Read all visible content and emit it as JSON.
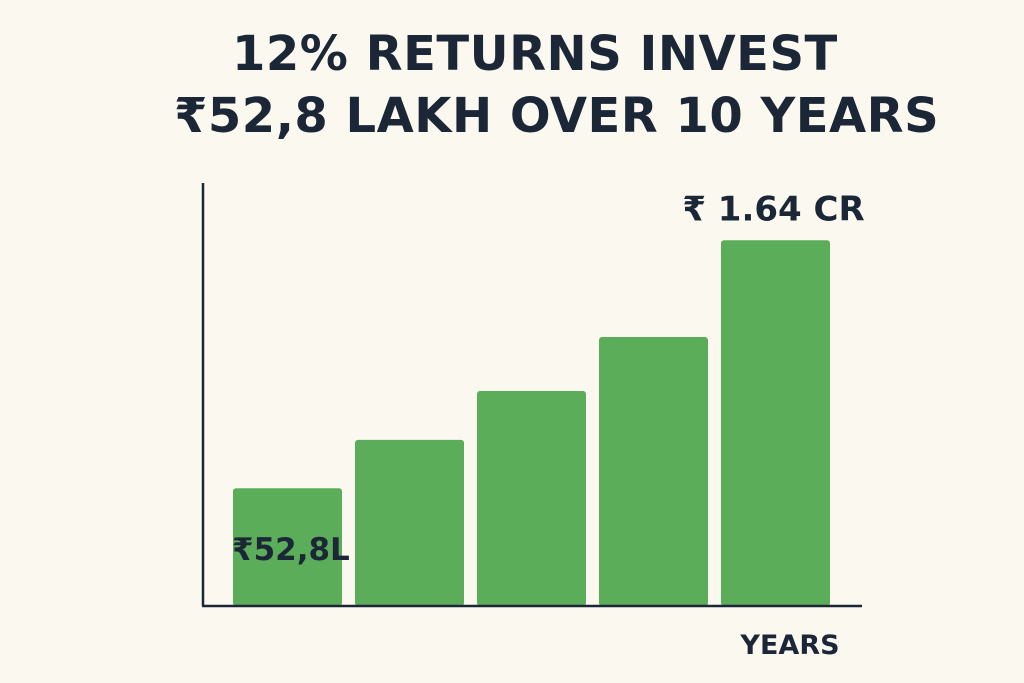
{
  "title": {
    "line1": "12% RETURNS INVEST",
    "line2": "₹52,8 LAKH OVER 10 YEARS"
  },
  "colors": {
    "bar": "#5cad5a",
    "axis": "#1b2737",
    "text": "#1b2737",
    "background": "#fbf8ef"
  },
  "chart_data": {
    "type": "bar",
    "title": "12% RETURNS INVEST ₹52,8 LAKH OVER 10 YEARS",
    "xlabel": "YEARS",
    "ylabel": "",
    "grid": false,
    "legend": "none",
    "unit": "₹ lakh",
    "values": [
      52.8,
      74.5,
      96.4,
      120.6,
      164
    ],
    "ylim": [
      0,
      200
    ],
    "data_labels": [
      {
        "bar_index": 0,
        "text": "₹52,8L"
      },
      {
        "bar_index": 4,
        "text": "₹ 1.64 CR"
      }
    ]
  }
}
